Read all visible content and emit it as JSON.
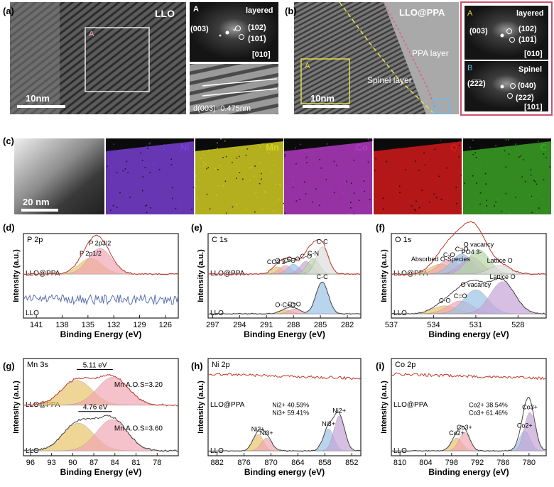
{
  "panels": {
    "a": {
      "tag": "(a)",
      "material": "LLO",
      "region_label": "A",
      "scale": "10nm",
      "fft_label": "A",
      "fft_phase": "layered",
      "spots": [
        "(003)",
        "(102)",
        "(101̅)"
      ],
      "zone": "[010]",
      "d_spacing": "d(003)=0.475nm"
    },
    "b": {
      "tag": "(b)",
      "material": "LLO@PPA",
      "region_a": "A",
      "region_b": "B",
      "scale": "10nm",
      "layers": [
        "PPA layer",
        "Spinel layer"
      ],
      "fft_a": {
        "label": "A",
        "phase": "layered",
        "spots": [
          "(003)",
          "(102)",
          "(101̅)"
        ],
        "zone": "[010]"
      },
      "fft_b": {
        "label": "B",
        "phase": "Spinel",
        "spots": [
          "(2̅2̅2)",
          "(040)",
          "(222̅)"
        ],
        "zone": "[101]"
      }
    },
    "c": {
      "tag": "(c)",
      "scale": "20 nm",
      "maps": [
        {
          "element": "Ni",
          "color": "#7a3fd8"
        },
        {
          "element": "Mn",
          "color": "#d8d322"
        },
        {
          "element": "Co",
          "color": "#b43bc6"
        },
        {
          "element": "O",
          "color": "#d81a1a"
        },
        {
          "element": "C",
          "color": "#3aa626"
        }
      ]
    }
  },
  "chart_data": [
    {
      "id": "d",
      "type": "line",
      "tag": "(d)",
      "title": "P 2p",
      "xlabel": "Binding Energy (eV)",
      "ylabel": "Intensity (a.u.)",
      "xlim": [
        142.5,
        124.5
      ],
      "xticks": [
        141,
        138,
        135,
        132,
        129,
        126
      ],
      "samples": [
        "LLO@PPA",
        "LLO"
      ],
      "peaks": [
        {
          "label": "P 2p1/2",
          "position_eV": 134.7
        },
        {
          "label": "P 2p3/2",
          "position_eV": 133.6
        }
      ]
    },
    {
      "id": "e",
      "type": "line",
      "tag": "(e)",
      "title": "C 1s",
      "xlabel": "Binding Energy (eV)",
      "ylabel": "Intensity (a.u.)",
      "xlim": [
        297.5,
        280.5
      ],
      "xticks": [
        297,
        294,
        291,
        288,
        285,
        282
      ],
      "samples": [
        "LLO@PPA",
        "LLO"
      ],
      "peaks_llo_ppa": [
        {
          "label": "CO3 2-",
          "position_eV": 289.8
        },
        {
          "label": "O-C=O",
          "position_eV": 288.9
        },
        {
          "label": "C=O",
          "position_eV": 288.0
        },
        {
          "label": "C-O",
          "position_eV": 286.6
        },
        {
          "label": "C-N",
          "position_eV": 285.8
        },
        {
          "label": "C-C",
          "position_eV": 284.8
        }
      ],
      "peaks_llo": [
        {
          "label": "O-C=O",
          "position_eV": 288.9
        },
        {
          "label": "C=O",
          "position_eV": 287.9
        },
        {
          "label": "C-C",
          "position_eV": 284.8
        }
      ]
    },
    {
      "id": "f",
      "type": "line",
      "tag": "(f)",
      "title": "O 1s",
      "xlabel": "Binding energy (eV)",
      "ylabel": "Intensity (a.u.)",
      "xlim": [
        537,
        526
      ],
      "xticks": [
        537,
        534,
        531,
        528
      ],
      "samples": [
        "LLO@PPA",
        "LLO"
      ],
      "peaks_llo_ppa": [
        {
          "label": "Absorbed O-Species",
          "position_eV": 533.5
        },
        {
          "label": "C-O",
          "position_eV": 532.9
        },
        {
          "label": "C=O",
          "position_eV": 532.0
        },
        {
          "label": "PO4 3-",
          "position_eV": 531.3
        },
        {
          "label": "O vacancy",
          "position_eV": 530.8
        },
        {
          "label": "Lattice O",
          "position_eV": 529.3
        }
      ],
      "peaks_llo": [
        {
          "label": "C-O",
          "position_eV": 533.2
        },
        {
          "label": "C=O",
          "position_eV": 532.1
        },
        {
          "label": "O vacancy",
          "position_eV": 531.0
        },
        {
          "label": "Lattice O",
          "position_eV": 529.1
        }
      ]
    },
    {
      "id": "g",
      "type": "line",
      "tag": "(g)",
      "title": "Mn 3s",
      "xlabel": "Binding Energy (eV)",
      "ylabel": "Intensity (a.u.)",
      "xlim": [
        97,
        75
      ],
      "xticks": [
        96,
        93,
        90,
        87,
        84,
        81,
        78
      ],
      "samples": [
        "LLO@PPA",
        "LLO"
      ],
      "splitting": [
        {
          "sample": "LLO@PPA",
          "value": "5.11 eV",
          "peaks_eV": [
            89.4,
            84.3
          ],
          "valence": "Mn A.O.S=3.20"
        },
        {
          "sample": "LLO",
          "value": "4.76 eV",
          "peaks_eV": [
            89.2,
            84.4
          ],
          "valence": "Mn A.O.S=3.60"
        }
      ]
    },
    {
      "id": "h",
      "type": "line",
      "tag": "(h)",
      "title": "Ni 2p",
      "xlabel": "Binding energy (eV)",
      "ylabel": "Intensity (a.u.)",
      "xlim": [
        884,
        850
      ],
      "xticks": [
        882,
        876,
        870,
        864,
        858,
        852
      ],
      "samples": [
        "LLO@PPA",
        "LLO"
      ],
      "peaks": [
        {
          "label": "Ni2+",
          "position_eV": 872.9
        },
        {
          "label": "Ni3+",
          "position_eV": 871.0
        },
        {
          "label": "Ni3+",
          "position_eV": 857.2
        },
        {
          "label": "Ni2+",
          "position_eV": 854.8
        }
      ],
      "composition": [
        "Ni2+ 40.59%",
        "Ni3+ 59.41%"
      ]
    },
    {
      "id": "i",
      "type": "line",
      "tag": "(i)",
      "title": "Co 2p",
      "xlabel": "Binding energy (eV)",
      "ylabel": "Intensity (a.u.)",
      "xlim": [
        812,
        776
      ],
      "xticks": [
        810,
        804,
        798,
        792,
        786,
        780
      ],
      "samples": [
        "LLO@PPA",
        "LLO"
      ],
      "peaks": [
        {
          "label": "Co2+",
          "position_eV": 796.8
        },
        {
          "label": "Co3+",
          "position_eV": 795.0
        },
        {
          "label": "Co2+",
          "position_eV": 781.0
        },
        {
          "label": "Co3+",
          "position_eV": 779.8
        }
      ],
      "composition": [
        "Co2+ 38.54%",
        "Co3+ 61.46%"
      ]
    }
  ]
}
